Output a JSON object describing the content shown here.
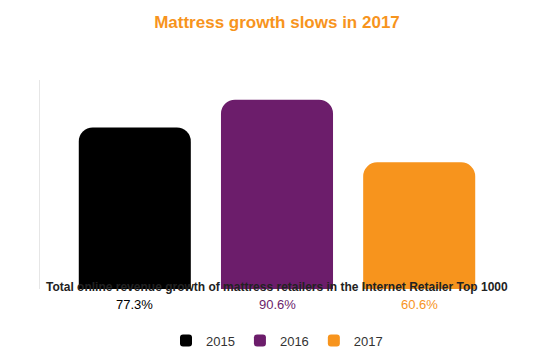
{
  "chart_data": {
    "type": "bar",
    "title": "Mattress growth slows in 2017",
    "subtitle": "Total online revenue growth of mattress retailers in the Internet Retailer Top 1000",
    "categories": [
      null
    ],
    "series": [
      {
        "name": "2015",
        "color": "#000000",
        "values": [
          77.3
        ],
        "value_labels": [
          "77.3%"
        ]
      },
      {
        "name": "2016",
        "color": "#6c1d6b",
        "values": [
          90.6
        ],
        "value_labels": [
          "90.6%"
        ]
      },
      {
        "name": "2017",
        "color": "#f7941d",
        "values": [
          60.6
        ],
        "value_labels": [
          "60.6%"
        ]
      }
    ],
    "ylim": [
      0,
      100
    ],
    "data_labels": true,
    "tick_labels": false,
    "grid": false,
    "legend": "bottom"
  }
}
